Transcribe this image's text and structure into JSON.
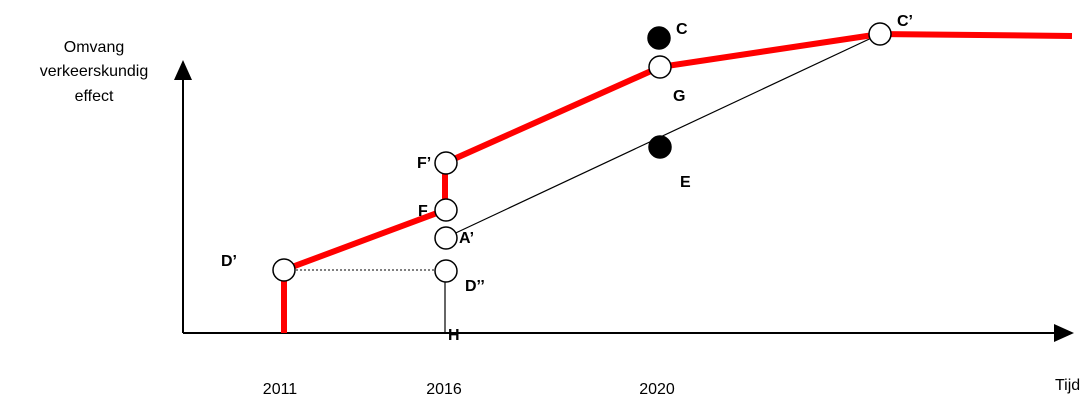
{
  "diagram": {
    "y_axis_label": [
      "Omvang",
      "verkeerskundig",
      "effect"
    ],
    "x_axis_label": "Tijd",
    "years": [
      "2011",
      "2016",
      "2020"
    ],
    "points": {
      "C": "C",
      "C_prime": "C’",
      "G": "G",
      "E": "E",
      "F_prime": "F’",
      "F": "F",
      "A_prime": "A’",
      "D_prime": "D’",
      "D_double_prime": "D’’",
      "H": "H"
    },
    "colors": {
      "red_line": "#ff0000",
      "axis": "#000000",
      "filled_point": "#000000",
      "open_point": "#ffffff"
    }
  }
}
